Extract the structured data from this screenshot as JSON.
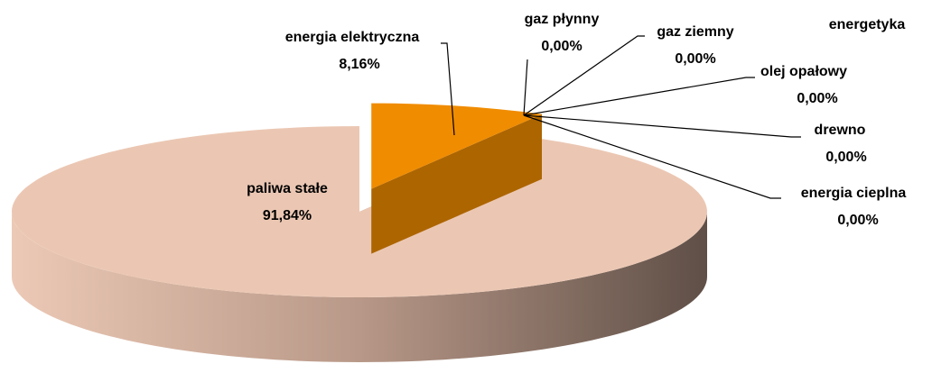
{
  "chart_data": {
    "type": "pie",
    "title": "energetyka",
    "categories": [
      "energia elektryczna",
      "gaz płynny",
      "gaz ziemny",
      "olej opałowy",
      "drewno",
      "energia cieplna",
      "paliwa stałe"
    ],
    "values": [
      8.16,
      0,
      0,
      0,
      0,
      0,
      91.84
    ],
    "value_labels": [
      "8,16%",
      "0,00%",
      "0,00%",
      "0,00%",
      "0,00%",
      "0,00%",
      "91,84%"
    ],
    "colors": [
      "#f08c00",
      "#9bbb59",
      "#8064a2",
      "#4bacc6",
      "#f79646",
      "#2c4d75",
      "#ebc7b3"
    ]
  }
}
